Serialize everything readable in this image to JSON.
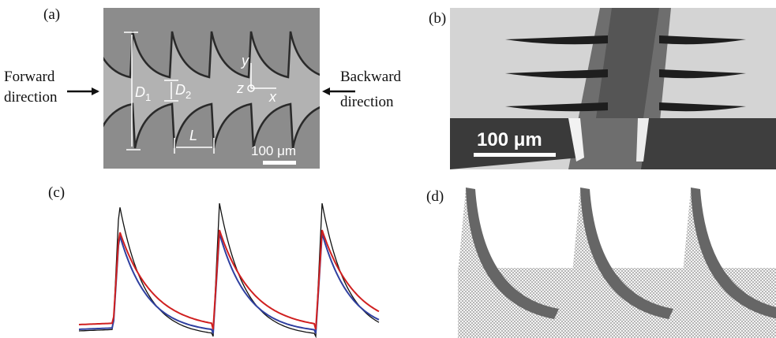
{
  "figure": {
    "panel_a": {
      "label": "(a)",
      "forward": [
        "Forward",
        "direction"
      ],
      "backward": [
        "Backward",
        "direction"
      ],
      "d1": {
        "symbol": "D",
        "subscript": "1"
      },
      "d2": {
        "symbol": "D",
        "subscript": "2"
      },
      "length": "L",
      "axes": {
        "y": "y",
        "z": "z",
        "x": "x"
      },
      "scale_bar": "100 μm"
    },
    "panel_b": {
      "label": "(b)",
      "scale_bar": "100 μm"
    },
    "panel_c": {
      "label": "(c)"
    },
    "panel_d": {
      "label": "(d)"
    }
  }
}
